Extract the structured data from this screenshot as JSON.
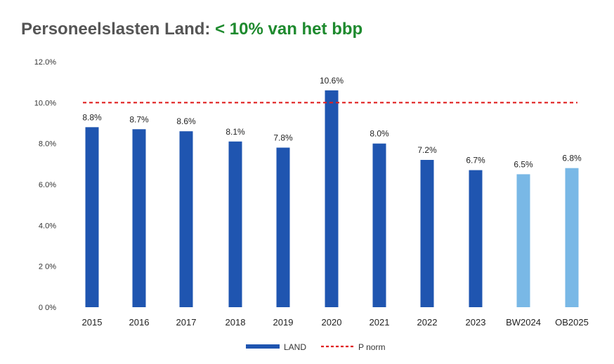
{
  "header": {
    "title_main": "Personeelslasten Land:",
    "title_highlight": "< 10% van het bbp"
  },
  "colors": {
    "actual": "#1f55b0",
    "forecast": "#79b8e6",
    "norm": "#e02020",
    "highlight_title": "#1e8a2e",
    "forecast_text": "#5b93c0"
  },
  "chart_data": {
    "type": "bar",
    "title": "Personeelslasten Land: < 10% van het bbp",
    "categories": [
      "2015",
      "2016",
      "2017",
      "2018",
      "2019",
      "2020",
      "2021",
      "2022",
      "2023",
      "BW2024",
      "OB2025"
    ],
    "series": [
      {
        "name": "LAND",
        "values": [
          8.8,
          8.7,
          8.6,
          8.1,
          7.8,
          10.6,
          8.0,
          7.2,
          6.7,
          6.5,
          6.8
        ],
        "labels": [
          "8.8%",
          "8.7%",
          "8.6%",
          "8.1%",
          "7.8%",
          "10.6%",
          "8.0%",
          "7.2%",
          "6.7%",
          "6.5%",
          "6.8%"
        ],
        "forecast": [
          false,
          false,
          false,
          false,
          false,
          false,
          false,
          false,
          false,
          true,
          true
        ]
      }
    ],
    "norm": {
      "name": "P norm",
      "value": 10.0
    },
    "yticks": [
      "0 0%",
      "2 0%",
      "4.0%",
      "6.0%",
      "8.0%",
      "10.0%",
      "12.0%"
    ],
    "ytick_values": [
      0,
      2,
      4,
      6,
      8,
      10,
      12
    ],
    "ylim": [
      0,
      12
    ],
    "xlabel": "",
    "ylabel": "",
    "legend": [
      "LAND",
      "P norm"
    ]
  }
}
